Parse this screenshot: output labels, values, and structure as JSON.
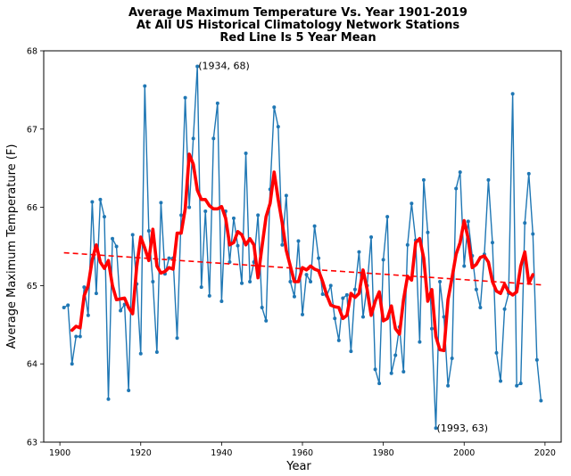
{
  "chart_data": {
    "type": "line",
    "title_lines": [
      "Average Maximum Temperature Vs. Year 1901-2019",
      "At All US Historical Climatology Network Stations",
      "Red Line Is 5 Year Mean"
    ],
    "xlabel": "Year",
    "ylabel": "Average Maximum Temperature (F)",
    "xlim": [
      1896,
      2024
    ],
    "ylim": [
      63,
      68
    ],
    "x_ticks": [
      1900,
      1920,
      1940,
      1960,
      1980,
      2000,
      2020
    ],
    "y_ticks": [
      63,
      64,
      65,
      66,
      67,
      68
    ],
    "grid": false,
    "legend": "none",
    "colors": {
      "annual": "#1f77b4",
      "mean": "#ff0000",
      "trend": "#ff0000"
    },
    "series": [
      {
        "style": "line-with-markers",
        "x": [
          1901,
          1902,
          1903,
          1904,
          1905,
          1906,
          1907,
          1908,
          1909,
          1910,
          1911,
          1912,
          1913,
          1914,
          1915,
          1916,
          1917,
          1918,
          1919,
          1920,
          1921,
          1922,
          1923,
          1924,
          1925,
          1926,
          1927,
          1928,
          1929,
          1930,
          1931,
          1932,
          1933,
          1934,
          1935,
          1936,
          1937,
          1938,
          1939,
          1940,
          1941,
          1942,
          1943,
          1944,
          1945,
          1946,
          1947,
          1948,
          1949,
          1950,
          1951,
          1952,
          1953,
          1954,
          1955,
          1956,
          1957,
          1958,
          1959,
          1960,
          1961,
          1962,
          1963,
          1964,
          1965,
          1966,
          1967,
          1968,
          1969,
          1970,
          1971,
          1972,
          1973,
          1974,
          1975,
          1976,
          1977,
          1978,
          1979,
          1980,
          1981,
          1982,
          1983,
          1984,
          1985,
          1986,
          1987,
          1988,
          1989,
          1990,
          1991,
          1992,
          1993,
          1994,
          1995,
          1996,
          1997,
          1998,
          1999,
          2000,
          2001,
          2002,
          2003,
          2004,
          2005,
          2006,
          2007,
          2008,
          2009,
          2010,
          2011,
          2012,
          2013,
          2014,
          2015,
          2016,
          2017,
          2018,
          2019
        ],
        "y": [
          64.72,
          64.75,
          64.0,
          64.35,
          64.35,
          64.98,
          64.62,
          66.07,
          64.9,
          66.1,
          65.88,
          63.55,
          65.6,
          65.5,
          64.68,
          64.76,
          63.66,
          65.65,
          65.02,
          64.13,
          67.55,
          65.7,
          65.05,
          64.15,
          66.06,
          65.15,
          65.35,
          65.35,
          64.33,
          65.9,
          67.4,
          66.0,
          66.88,
          67.8,
          64.98,
          65.95,
          64.87,
          66.88,
          67.33,
          64.8,
          65.95,
          65.3,
          65.86,
          65.51,
          65.03,
          66.69,
          65.05,
          65.3,
          65.9,
          64.72,
          64.55,
          66.23,
          67.28,
          67.03,
          65.52,
          66.15,
          65.05,
          64.86,
          65.57,
          64.63,
          65.14,
          65.05,
          65.76,
          65.35,
          64.89,
          64.87,
          65.0,
          64.58,
          64.3,
          64.84,
          64.88,
          64.16,
          64.95,
          65.43,
          64.6,
          65.0,
          65.62,
          63.93,
          63.75,
          65.33,
          65.88,
          63.88,
          64.11,
          64.47,
          63.9,
          65.52,
          66.05,
          65.58,
          64.28,
          66.35,
          65.68,
          64.45,
          63.18,
          65.05,
          64.6,
          63.72,
          64.07,
          66.24,
          66.45,
          65.25,
          65.82,
          65.38,
          64.95,
          64.72,
          65.4,
          66.35,
          65.55,
          64.14,
          63.78,
          64.7,
          64.9,
          67.45,
          63.72,
          63.75,
          65.8,
          66.43,
          65.66,
          64.05,
          63.53
        ]
      },
      {
        "style": "thick-line",
        "x": [
          1903,
          1904,
          1905,
          1906,
          1907,
          1908,
          1909,
          1910,
          1911,
          1912,
          1913,
          1914,
          1915,
          1916,
          1917,
          1918,
          1919,
          1920,
          1921,
          1922,
          1923,
          1924,
          1925,
          1926,
          1927,
          1928,
          1929,
          1930,
          1931,
          1932,
          1933,
          1934,
          1935,
          1936,
          1937,
          1938,
          1939,
          1940,
          1941,
          1942,
          1943,
          1944,
          1945,
          1946,
          1947,
          1948,
          1949,
          1950,
          1951,
          1952,
          1953,
          1954,
          1955,
          1956,
          1957,
          1958,
          1959,
          1960,
          1961,
          1962,
          1963,
          1964,
          1965,
          1966,
          1967,
          1968,
          1969,
          1970,
          1971,
          1972,
          1973,
          1974,
          1975,
          1976,
          1977,
          1978,
          1979,
          1980,
          1981,
          1982,
          1983,
          1984,
          1985,
          1986,
          1987,
          1988,
          1989,
          1990,
          1991,
          1992,
          1993,
          1994,
          1995,
          1996,
          1997,
          1998,
          1999,
          2000,
          2001,
          2002,
          2003,
          2004,
          2005,
          2006,
          2007,
          2008,
          2009,
          2010,
          2011,
          2012,
          2013,
          2014,
          2015,
          2016,
          2017
        ],
        "y": [
          64.43,
          64.48,
          64.46,
          64.87,
          65.0,
          65.33,
          65.52,
          65.3,
          65.22,
          65.32,
          65.0,
          64.82,
          64.83,
          64.84,
          64.72,
          64.64,
          65.24,
          65.62,
          65.48,
          65.32,
          65.72,
          65.25,
          65.16,
          65.18,
          65.23,
          65.21,
          65.67,
          65.67,
          65.98,
          66.68,
          66.55,
          66.22,
          66.1,
          66.1,
          66.02,
          65.98,
          65.98,
          66.01,
          65.86,
          65.52,
          65.55,
          65.69,
          65.65,
          65.52,
          65.6,
          65.52,
          65.1,
          65.5,
          65.88,
          66.05,
          66.45,
          66.1,
          65.8,
          65.45,
          65.25,
          65.05,
          65.05,
          65.23,
          65.2,
          65.25,
          65.21,
          65.19,
          65.05,
          64.88,
          64.75,
          64.73,
          64.72,
          64.58,
          64.62,
          64.9,
          64.85,
          64.9,
          65.2,
          64.95,
          64.62,
          64.8,
          64.92,
          64.55,
          64.58,
          64.74,
          64.45,
          64.38,
          64.82,
          65.12,
          65.07,
          65.55,
          65.6,
          65.35,
          64.8,
          64.95,
          64.35,
          64.18,
          64.17,
          64.82,
          65.1,
          65.4,
          65.55,
          65.83,
          65.6,
          65.23,
          65.27,
          65.36,
          65.38,
          65.3,
          65.05,
          64.93,
          64.9,
          65.02,
          64.92,
          64.88,
          64.92,
          65.25,
          65.43,
          65.03,
          65.14
        ]
      },
      {
        "style": "dashed-trend",
        "x": [
          1901,
          2019
        ],
        "y": [
          65.42,
          65.01
        ]
      }
    ],
    "annotations": [
      {
        "text": "(1934, 68)",
        "x": 1934,
        "y": 67.8
      },
      {
        "text": "(1993, 63)",
        "x": 1993,
        "y": 63.18
      }
    ]
  }
}
